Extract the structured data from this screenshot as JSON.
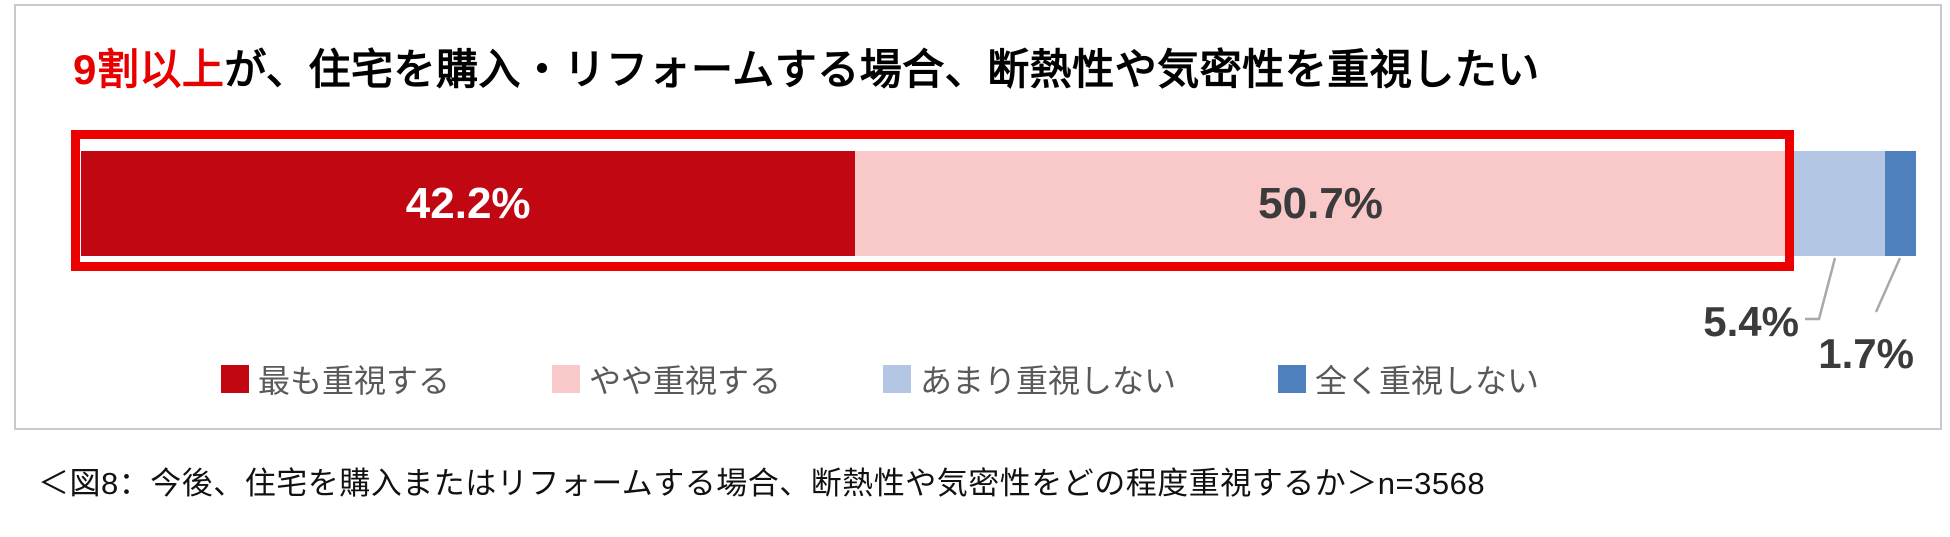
{
  "title": {
    "highlight": "9割以上",
    "rest": "が、住宅を購入・リフォームする場合、断熱性や気密性を重視したい",
    "highlight_color": "#e80000"
  },
  "chart_data": {
    "type": "bar",
    "subtype": "horizontal-stacked-single-bar",
    "unit": "%",
    "total": 100.0,
    "segments": [
      {
        "name": "最も重視する",
        "value": 42.2,
        "label": "42.2%",
        "color": "#c00712",
        "text_color": "#ffffff",
        "label_inside": true
      },
      {
        "name": "やや重視する",
        "value": 50.7,
        "label": "50.7%",
        "color": "#f9c9c9",
        "text_color": "#3b3b3b",
        "label_inside": true
      },
      {
        "name": "あまり重視しない",
        "value": 5.4,
        "label": "5.4%",
        "color": "#b3c6e4",
        "text_color": "#3b3b3b",
        "label_inside": false
      },
      {
        "name": "全く重視しない",
        "value": 1.7,
        "label": "1.7%",
        "color": "#4e80bd",
        "text_color": "#3b3b3b",
        "label_inside": false
      }
    ],
    "legend": [
      {
        "label": "最も重視する",
        "color": "#c00712"
      },
      {
        "label": "やや重視する",
        "color": "#f9c9c9"
      },
      {
        "label": "あまり重視しない",
        "color": "#b3c6e4"
      },
      {
        "label": "全く重視しない",
        "color": "#4e80bd"
      }
    ],
    "highlight_box": {
      "covers_segments": [
        "最も重視する",
        "やや重視する"
      ],
      "covered_total": 92.9,
      "color": "#ed0000"
    },
    "legend_position": "bottom",
    "grid": false
  },
  "caption": "＜図8：今後、住宅を購入またはリフォームする場合、断熱性や気密性をどの程度重視するか＞n=3568",
  "colors": {
    "leader_line": "#a9a9a9",
    "card_border": "#c9c9c9"
  }
}
